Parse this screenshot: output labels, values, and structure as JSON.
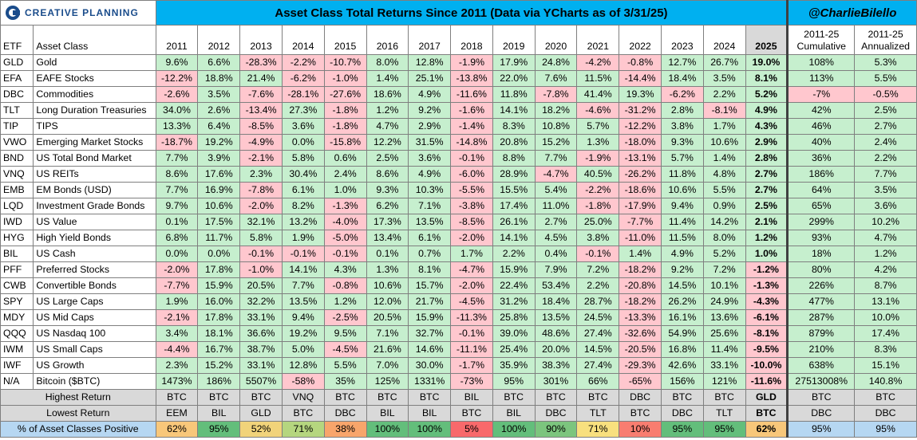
{
  "header": {
    "logo_text": "CREATIVE PLANNING",
    "title": "Asset Class Total Returns Since 2011 (Data via YCharts as of 3/31/25)",
    "handle": "@CharlieBilello"
  },
  "columns": {
    "etf": "ETF",
    "asset_class": "Asset Class",
    "years": [
      "2011",
      "2012",
      "2013",
      "2014",
      "2015",
      "2016",
      "2017",
      "2018",
      "2019",
      "2020",
      "2021",
      "2022",
      "2023",
      "2024",
      "2025"
    ],
    "cumulative": "2011-25\nCumulative",
    "annualized": "2011-25\nAnnualized"
  },
  "chart_data": {
    "type": "table",
    "rows": [
      {
        "etf": "GLD",
        "name": "Gold",
        "values": [
          "9.6%",
          "6.6%",
          "-28.3%",
          "-2.2%",
          "-10.7%",
          "8.0%",
          "12.8%",
          "-1.9%",
          "17.9%",
          "24.8%",
          "-4.2%",
          "-0.8%",
          "12.7%",
          "26.7%",
          "19.0%"
        ],
        "cum": "108%",
        "ann": "5.3%"
      },
      {
        "etf": "EFA",
        "name": "EAFE Stocks",
        "values": [
          "-12.2%",
          "18.8%",
          "21.4%",
          "-6.2%",
          "-1.0%",
          "1.4%",
          "25.1%",
          "-13.8%",
          "22.0%",
          "7.6%",
          "11.5%",
          "-14.4%",
          "18.4%",
          "3.5%",
          "8.1%"
        ],
        "cum": "113%",
        "ann": "5.5%"
      },
      {
        "etf": "DBC",
        "name": "Commodities",
        "values": [
          "-2.6%",
          "3.5%",
          "-7.6%",
          "-28.1%",
          "-27.6%",
          "18.6%",
          "4.9%",
          "-11.6%",
          "11.8%",
          "-7.8%",
          "41.4%",
          "19.3%",
          "-6.2%",
          "2.2%",
          "5.2%"
        ],
        "cum": "-7%",
        "ann": "-0.5%"
      },
      {
        "etf": "TLT",
        "name": "Long Duration Treasuries",
        "values": [
          "34.0%",
          "2.6%",
          "-13.4%",
          "27.3%",
          "-1.8%",
          "1.2%",
          "9.2%",
          "-1.6%",
          "14.1%",
          "18.2%",
          "-4.6%",
          "-31.2%",
          "2.8%",
          "-8.1%",
          "4.9%"
        ],
        "cum": "42%",
        "ann": "2.5%"
      },
      {
        "etf": "TIP",
        "name": "TIPS",
        "values": [
          "13.3%",
          "6.4%",
          "-8.5%",
          "3.6%",
          "-1.8%",
          "4.7%",
          "2.9%",
          "-1.4%",
          "8.3%",
          "10.8%",
          "5.7%",
          "-12.2%",
          "3.8%",
          "1.7%",
          "4.3%"
        ],
        "cum": "46%",
        "ann": "2.7%"
      },
      {
        "etf": "VWO",
        "name": "Emerging Market Stocks",
        "values": [
          "-18.7%",
          "19.2%",
          "-4.9%",
          "0.0%",
          "-15.8%",
          "12.2%",
          "31.5%",
          "-14.8%",
          "20.8%",
          "15.2%",
          "1.3%",
          "-18.0%",
          "9.3%",
          "10.6%",
          "2.9%"
        ],
        "cum": "40%",
        "ann": "2.4%"
      },
      {
        "etf": "BND",
        "name": "US Total Bond Market",
        "values": [
          "7.7%",
          "3.9%",
          "-2.1%",
          "5.8%",
          "0.6%",
          "2.5%",
          "3.6%",
          "-0.1%",
          "8.8%",
          "7.7%",
          "-1.9%",
          "-13.1%",
          "5.7%",
          "1.4%",
          "2.8%"
        ],
        "cum": "36%",
        "ann": "2.2%"
      },
      {
        "etf": "VNQ",
        "name": "US REITs",
        "values": [
          "8.6%",
          "17.6%",
          "2.3%",
          "30.4%",
          "2.4%",
          "8.6%",
          "4.9%",
          "-6.0%",
          "28.9%",
          "-4.7%",
          "40.5%",
          "-26.2%",
          "11.8%",
          "4.8%",
          "2.7%"
        ],
        "cum": "186%",
        "ann": "7.7%"
      },
      {
        "etf": "EMB",
        "name": "EM Bonds (USD)",
        "values": [
          "7.7%",
          "16.9%",
          "-7.8%",
          "6.1%",
          "1.0%",
          "9.3%",
          "10.3%",
          "-5.5%",
          "15.5%",
          "5.4%",
          "-2.2%",
          "-18.6%",
          "10.6%",
          "5.5%",
          "2.7%"
        ],
        "cum": "64%",
        "ann": "3.5%"
      },
      {
        "etf": "LQD",
        "name": "Investment Grade Bonds",
        "values": [
          "9.7%",
          "10.6%",
          "-2.0%",
          "8.2%",
          "-1.3%",
          "6.2%",
          "7.1%",
          "-3.8%",
          "17.4%",
          "11.0%",
          "-1.8%",
          "-17.9%",
          "9.4%",
          "0.9%",
          "2.5%"
        ],
        "cum": "65%",
        "ann": "3.6%"
      },
      {
        "etf": "IWD",
        "name": "US Value",
        "values": [
          "0.1%",
          "17.5%",
          "32.1%",
          "13.2%",
          "-4.0%",
          "17.3%",
          "13.5%",
          "-8.5%",
          "26.1%",
          "2.7%",
          "25.0%",
          "-7.7%",
          "11.4%",
          "14.2%",
          "2.1%"
        ],
        "cum": "299%",
        "ann": "10.2%"
      },
      {
        "etf": "HYG",
        "name": "High Yield Bonds",
        "values": [
          "6.8%",
          "11.7%",
          "5.8%",
          "1.9%",
          "-5.0%",
          "13.4%",
          "6.1%",
          "-2.0%",
          "14.1%",
          "4.5%",
          "3.8%",
          "-11.0%",
          "11.5%",
          "8.0%",
          "1.2%"
        ],
        "cum": "93%",
        "ann": "4.7%"
      },
      {
        "etf": "BIL",
        "name": "US Cash",
        "values": [
          "0.0%",
          "0.0%",
          "-0.1%",
          "-0.1%",
          "-0.1%",
          "0.1%",
          "0.7%",
          "1.7%",
          "2.2%",
          "0.4%",
          "-0.1%",
          "1.4%",
          "4.9%",
          "5.2%",
          "1.0%"
        ],
        "cum": "18%",
        "ann": "1.2%"
      },
      {
        "etf": "PFF",
        "name": "Preferred Stocks",
        "values": [
          "-2.0%",
          "17.8%",
          "-1.0%",
          "14.1%",
          "4.3%",
          "1.3%",
          "8.1%",
          "-4.7%",
          "15.9%",
          "7.9%",
          "7.2%",
          "-18.2%",
          "9.2%",
          "7.2%",
          "-1.2%"
        ],
        "cum": "80%",
        "ann": "4.2%"
      },
      {
        "etf": "CWB",
        "name": "Convertible Bonds",
        "values": [
          "-7.7%",
          "15.9%",
          "20.5%",
          "7.7%",
          "-0.8%",
          "10.6%",
          "15.7%",
          "-2.0%",
          "22.4%",
          "53.4%",
          "2.2%",
          "-20.8%",
          "14.5%",
          "10.1%",
          "-1.3%"
        ],
        "cum": "226%",
        "ann": "8.7%"
      },
      {
        "etf": "SPY",
        "name": "US Large Caps",
        "values": [
          "1.9%",
          "16.0%",
          "32.2%",
          "13.5%",
          "1.2%",
          "12.0%",
          "21.7%",
          "-4.5%",
          "31.2%",
          "18.4%",
          "28.7%",
          "-18.2%",
          "26.2%",
          "24.9%",
          "-4.3%"
        ],
        "cum": "477%",
        "ann": "13.1%"
      },
      {
        "etf": "MDY",
        "name": "US Mid Caps",
        "values": [
          "-2.1%",
          "17.8%",
          "33.1%",
          "9.4%",
          "-2.5%",
          "20.5%",
          "15.9%",
          "-11.3%",
          "25.8%",
          "13.5%",
          "24.5%",
          "-13.3%",
          "16.1%",
          "13.6%",
          "-6.1%"
        ],
        "cum": "287%",
        "ann": "10.0%"
      },
      {
        "etf": "QQQ",
        "name": "US Nasdaq 100",
        "values": [
          "3.4%",
          "18.1%",
          "36.6%",
          "19.2%",
          "9.5%",
          "7.1%",
          "32.7%",
          "-0.1%",
          "39.0%",
          "48.6%",
          "27.4%",
          "-32.6%",
          "54.9%",
          "25.6%",
          "-8.1%"
        ],
        "cum": "879%",
        "ann": "17.4%"
      },
      {
        "etf": "IWM",
        "name": "US Small Caps",
        "values": [
          "-4.4%",
          "16.7%",
          "38.7%",
          "5.0%",
          "-4.5%",
          "21.6%",
          "14.6%",
          "-11.1%",
          "25.4%",
          "20.0%",
          "14.5%",
          "-20.5%",
          "16.8%",
          "11.4%",
          "-9.5%"
        ],
        "cum": "210%",
        "ann": "8.3%"
      },
      {
        "etf": "IWF",
        "name": "US Growth",
        "values": [
          "2.3%",
          "15.2%",
          "33.1%",
          "12.8%",
          "5.5%",
          "7.0%",
          "30.0%",
          "-1.7%",
          "35.9%",
          "38.3%",
          "27.4%",
          "-29.3%",
          "42.6%",
          "33.1%",
          "-10.0%"
        ],
        "cum": "638%",
        "ann": "15.1%"
      },
      {
        "etf": "N/A",
        "name": "Bitcoin ($BTC)",
        "values": [
          "1473%",
          "186%",
          "5507%",
          "-58%",
          "35%",
          "125%",
          "1331%",
          "-73%",
          "95%",
          "301%",
          "66%",
          "-65%",
          "156%",
          "121%",
          "-11.6%"
        ],
        "cum": "27513008%",
        "ann": "140.8%"
      }
    ],
    "summary": [
      {
        "label": "Highest Return",
        "values": [
          "BTC",
          "BTC",
          "BTC",
          "VNQ",
          "BTC",
          "BTC",
          "BTC",
          "BIL",
          "BTC",
          "BTC",
          "BTC",
          "DBC",
          "BTC",
          "BTC",
          "GLD",
          "BTC",
          "BTC"
        ]
      },
      {
        "label": "Lowest Return",
        "values": [
          "EEM",
          "BIL",
          "GLD",
          "BTC",
          "DBC",
          "BIL",
          "BIL",
          "BTC",
          "BIL",
          "DBC",
          "TLT",
          "BTC",
          "DBC",
          "TLT",
          "BTC",
          "DBC",
          "DBC"
        ]
      },
      {
        "label": "% of Asset Classes Positive",
        "values": [
          "62%",
          "95%",
          "52%",
          "71%",
          "38%",
          "100%",
          "100%",
          "5%",
          "100%",
          "90%",
          "71%",
          "10%",
          "95%",
          "95%",
          "62%",
          "95%",
          "95%"
        ],
        "colors": [
          "#f8c77a",
          "#63be7b",
          "#f1d37a",
          "#b5d67f",
          "#f8a56b",
          "#63be7b",
          "#63be7b",
          "#f8696b",
          "#63be7b",
          "#7cc57e",
          "#f8e07e",
          "#f87d70",
          "#63be7b",
          "#63be7b",
          "#f8c77a",
          "#b6d7f2",
          "#b6d7f2"
        ]
      }
    ]
  }
}
